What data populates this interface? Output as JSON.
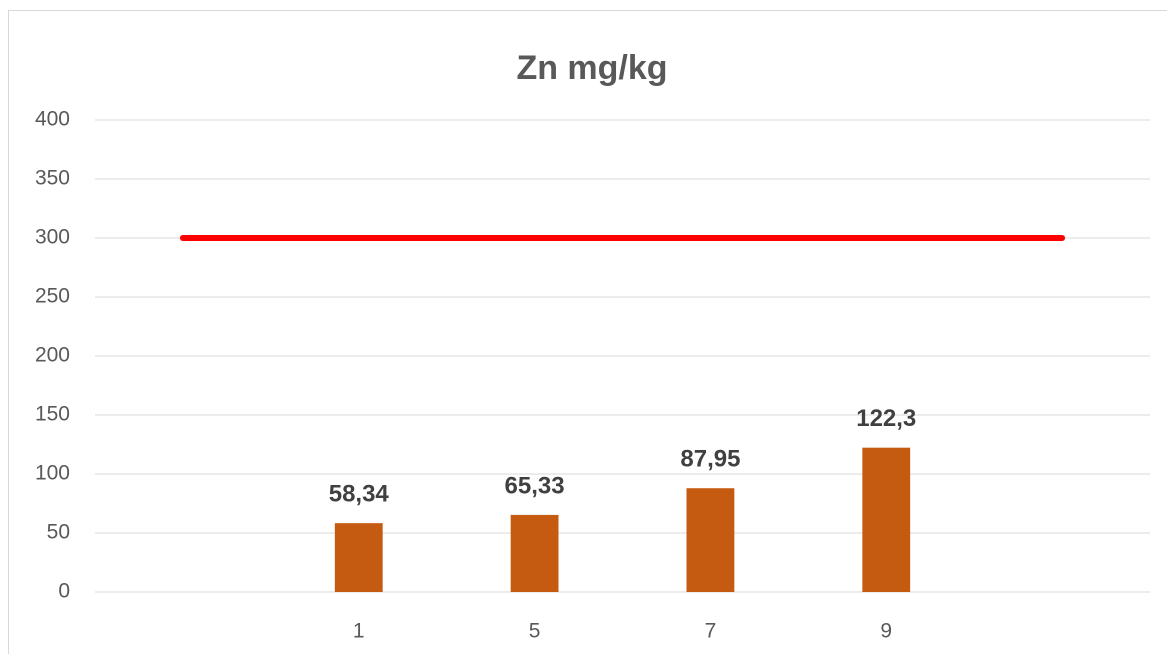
{
  "chart_data": {
    "type": "bar",
    "title": "Zn mg/kg",
    "categories": [
      null,
      "1",
      "5",
      "7",
      "9",
      null
    ],
    "series": [
      {
        "color": "#c55a11",
        "values": [
          null,
          58.34,
          65.33,
          87.95,
          122.3,
          null
        ],
        "value_labels": [
          null,
          "58,34",
          "65,33",
          "87,95",
          "122,3",
          null
        ]
      },
      {
        "type": "line",
        "color": "#ff0000",
        "values": [
          300,
          300,
          300,
          300,
          300,
          300
        ]
      }
    ],
    "ylim": [
      0,
      400
    ],
    "yticks": [
      0,
      50,
      100,
      150,
      200,
      250,
      300,
      350,
      400
    ],
    "grid": true
  }
}
